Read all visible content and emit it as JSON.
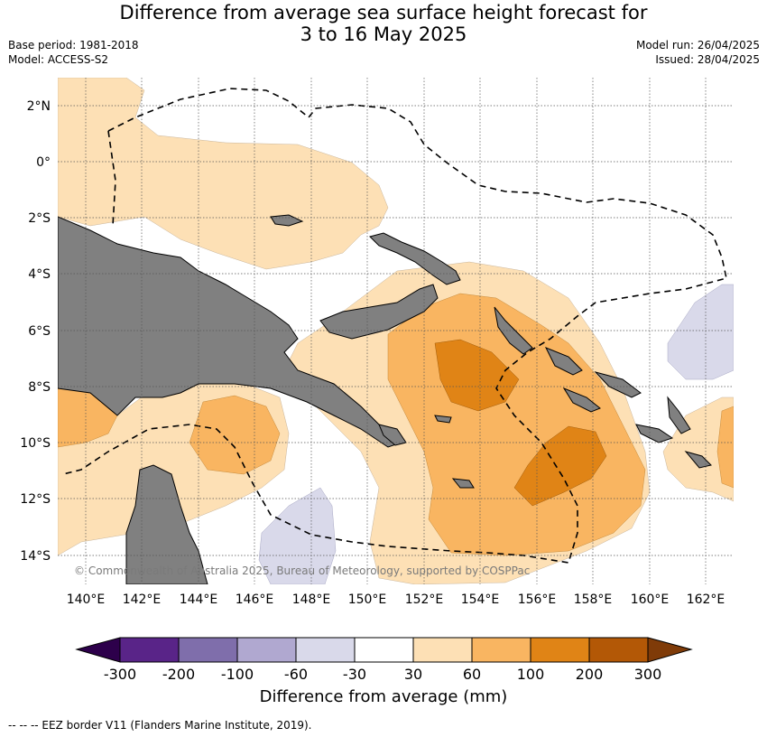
{
  "title_line1": "Difference from average sea surface height forecast for",
  "title_line2": "3 to 16 May 2025",
  "base_period": "Base period: 1981-2018",
  "model": "Model: ACCESS-S2",
  "model_run": "Model run: 26/04/2025",
  "issued": "Issued: 28/04/2025",
  "copyright": "© Commonwealth of Australia 2025, Bureau of Meteorology, supported by COSPPac",
  "footnote": "--  --  -- EEZ border V11 (Flanders Marine Institute, 2019).",
  "colorbar_label": "Difference from average (mm)",
  "lat_ticks": [
    "2°N",
    "0°",
    "2°S",
    "4°S",
    "6°S",
    "8°S",
    "10°S",
    "12°S",
    "14°S"
  ],
  "lon_ticks": [
    "140°E",
    "142°E",
    "144°E",
    "146°E",
    "148°E",
    "150°E",
    "152°E",
    "154°E",
    "156°E",
    "158°E",
    "160°E",
    "162°E"
  ],
  "colorbar": {
    "ticks": [
      "-300",
      "-200",
      "-100",
      "-60",
      "-30",
      "30",
      "60",
      "100",
      "200",
      "300"
    ],
    "colors": [
      "#592488",
      "#7f6eab",
      "#b0a8d0",
      "#d9d9ea",
      "#ffffff",
      "#fde0b5",
      "#f9b561",
      "#e08416",
      "#b35806"
    ],
    "extend_low": "#2d004b",
    "extend_high": "#7f3b08"
  },
  "colors": {
    "land": "#808080",
    "c30": "#fde0b5",
    "c60": "#f9b561",
    "c100": "#e08416",
    "neg30": "#d9d9ea"
  }
}
